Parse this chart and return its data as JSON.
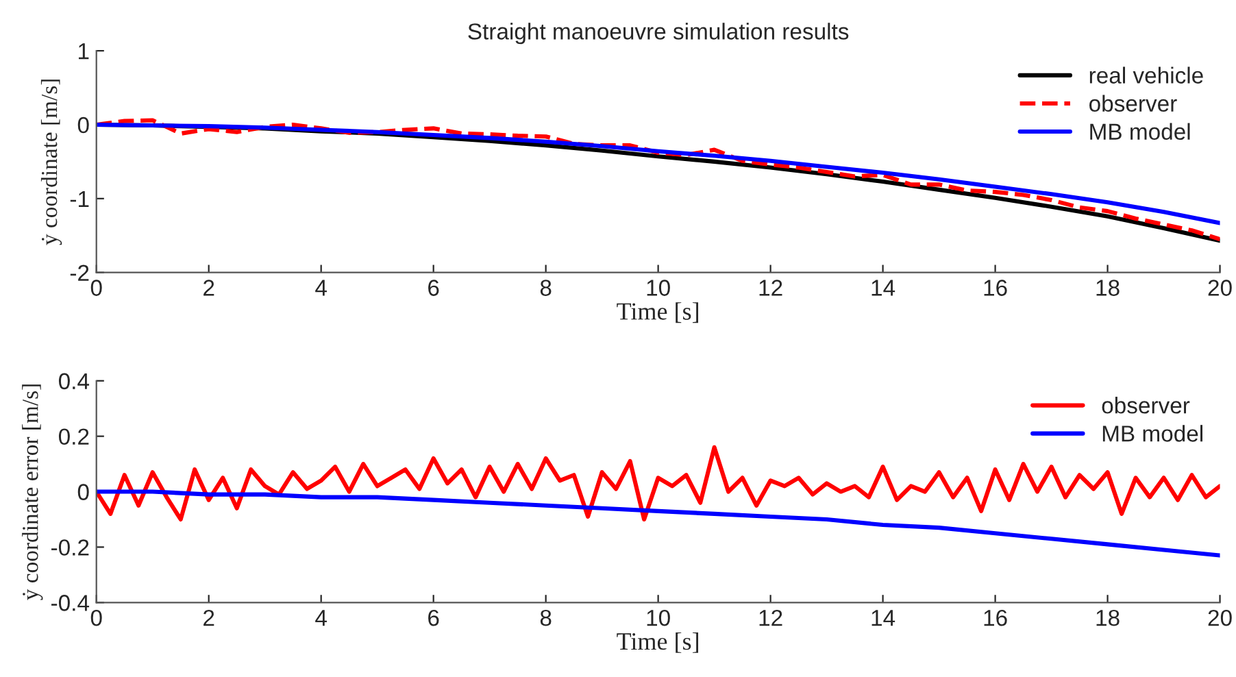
{
  "chart_data": [
    {
      "type": "line",
      "title": "Straight manoeuvre simulation results",
      "xlabel": "Time [s]",
      "ylabel": "ẏ coordinate [m/s]",
      "xlim": [
        0,
        20
      ],
      "xticks": [
        0,
        2,
        4,
        6,
        8,
        10,
        12,
        14,
        16,
        18,
        20
      ],
      "ylim": [
        -2,
        1
      ],
      "yticks": [
        -2,
        -1,
        0,
        1
      ],
      "grid": false,
      "legend": "top right",
      "series": [
        {
          "name": "real vehicle",
          "color": "#000000",
          "line_style": "solid",
          "x": [
            0,
            1,
            2,
            3,
            4,
            5,
            6,
            7,
            8,
            9,
            10,
            11,
            12,
            13,
            14,
            15,
            16,
            17,
            18,
            19,
            20
          ],
          "values": [
            0,
            -0.01,
            -0.03,
            -0.05,
            -0.09,
            -0.12,
            -0.17,
            -0.22,
            -0.28,
            -0.35,
            -0.43,
            -0.5,
            -0.58,
            -0.67,
            -0.77,
            -0.88,
            -0.99,
            -1.11,
            -1.24,
            -1.4,
            -1.57
          ]
        },
        {
          "name": "observer",
          "color": "#ff0000",
          "line_style": "dashed",
          "x": [
            0,
            0.5,
            1,
            1.5,
            2,
            2.5,
            3,
            3.5,
            4,
            4.5,
            5,
            5.5,
            6,
            6.5,
            7,
            7.5,
            8,
            8.5,
            9,
            9.5,
            10,
            10.5,
            11,
            11.5,
            12,
            12.5,
            13,
            13.5,
            14,
            14.5,
            15,
            15.5,
            16,
            16.5,
            17,
            17.5,
            18,
            18.5,
            19,
            19.5,
            20
          ],
          "values": [
            0,
            0.05,
            0.06,
            -0.12,
            -0.06,
            -0.1,
            -0.03,
            0.0,
            -0.05,
            -0.11,
            -0.1,
            -0.07,
            -0.05,
            -0.12,
            -0.13,
            -0.15,
            -0.16,
            -0.26,
            -0.28,
            -0.28,
            -0.38,
            -0.41,
            -0.34,
            -0.49,
            -0.54,
            -0.58,
            -0.64,
            -0.7,
            -0.68,
            -0.81,
            -0.81,
            -0.89,
            -0.91,
            -0.95,
            -1.02,
            -1.12,
            -1.17,
            -1.27,
            -1.35,
            -1.43,
            -1.55
          ]
        },
        {
          "name": "MB model",
          "color": "#0000ff",
          "line_style": "solid",
          "x": [
            0,
            1,
            2,
            3,
            4,
            5,
            6,
            7,
            8,
            9,
            10,
            11,
            12,
            13,
            14,
            15,
            16,
            17,
            18,
            19,
            20
          ],
          "values": [
            0,
            -0.01,
            -0.02,
            -0.04,
            -0.07,
            -0.1,
            -0.14,
            -0.18,
            -0.23,
            -0.29,
            -0.36,
            -0.42,
            -0.49,
            -0.57,
            -0.65,
            -0.74,
            -0.84,
            -0.94,
            -1.05,
            -1.18,
            -1.33
          ]
        }
      ]
    },
    {
      "type": "line",
      "xlabel": "Time [s]",
      "ylabel": "ẏ coordinate error [m/s]",
      "xlim": [
        0,
        20
      ],
      "xticks": [
        0,
        2,
        4,
        6,
        8,
        10,
        12,
        14,
        16,
        18,
        20
      ],
      "ylim": [
        -0.4,
        0.4
      ],
      "yticks": [
        -0.4,
        -0.2,
        0,
        0.2,
        0.4
      ],
      "grid": false,
      "legend": "top right",
      "series": [
        {
          "name": "observer",
          "color": "#ff0000",
          "line_style": "solid",
          "x": [
            0,
            0.25,
            0.5,
            0.75,
            1,
            1.25,
            1.5,
            1.75,
            2,
            2.25,
            2.5,
            2.75,
            3,
            3.25,
            3.5,
            3.75,
            4,
            4.25,
            4.5,
            4.75,
            5,
            5.25,
            5.5,
            5.75,
            6,
            6.25,
            6.5,
            6.75,
            7,
            7.25,
            7.5,
            7.75,
            8,
            8.25,
            8.5,
            8.75,
            9,
            9.25,
            9.5,
            9.75,
            10,
            10.25,
            10.5,
            10.75,
            11,
            11.25,
            11.5,
            11.75,
            12,
            12.25,
            12.5,
            12.75,
            13,
            13.25,
            13.5,
            13.75,
            14,
            14.25,
            14.5,
            14.75,
            15,
            15.25,
            15.5,
            15.75,
            16,
            16.25,
            16.5,
            16.75,
            17,
            17.25,
            17.5,
            17.75,
            18,
            18.25,
            18.5,
            18.75,
            19,
            19.25,
            19.5,
            19.75,
            20
          ],
          "values": [
            0,
            -0.08,
            0.06,
            -0.05,
            0.07,
            -0.02,
            -0.1,
            0.08,
            -0.03,
            0.05,
            -0.06,
            0.08,
            0.02,
            -0.01,
            0.07,
            0.01,
            0.04,
            0.09,
            0.0,
            0.1,
            0.02,
            0.05,
            0.08,
            0.01,
            0.12,
            0.03,
            0.08,
            -0.02,
            0.09,
            0.0,
            0.1,
            0.01,
            0.12,
            0.04,
            0.06,
            -0.09,
            0.07,
            0.01,
            0.11,
            -0.1,
            0.05,
            0.02,
            0.06,
            -0.04,
            0.16,
            0.0,
            0.05,
            -0.05,
            0.04,
            0.02,
            0.05,
            -0.01,
            0.03,
            0.0,
            0.02,
            -0.02,
            0.09,
            -0.03,
            0.02,
            0.0,
            0.07,
            -0.02,
            0.05,
            -0.07,
            0.08,
            -0.03,
            0.1,
            0.0,
            0.09,
            -0.02,
            0.06,
            0.01,
            0.07,
            -0.08,
            0.05,
            -0.02,
            0.05,
            -0.03,
            0.06,
            -0.02,
            0.02
          ]
        },
        {
          "name": "MB model",
          "color": "#0000ff",
          "line_style": "solid",
          "x": [
            0,
            1,
            2,
            3,
            4,
            5,
            6,
            7,
            8,
            9,
            10,
            11,
            12,
            13,
            14,
            15,
            16,
            17,
            18,
            19,
            20
          ],
          "values": [
            0,
            0,
            -0.01,
            -0.01,
            -0.02,
            -0.02,
            -0.03,
            -0.04,
            -0.05,
            -0.06,
            -0.07,
            -0.08,
            -0.09,
            -0.1,
            -0.12,
            -0.13,
            -0.15,
            -0.17,
            -0.19,
            -0.21,
            -0.23
          ]
        }
      ]
    }
  ]
}
